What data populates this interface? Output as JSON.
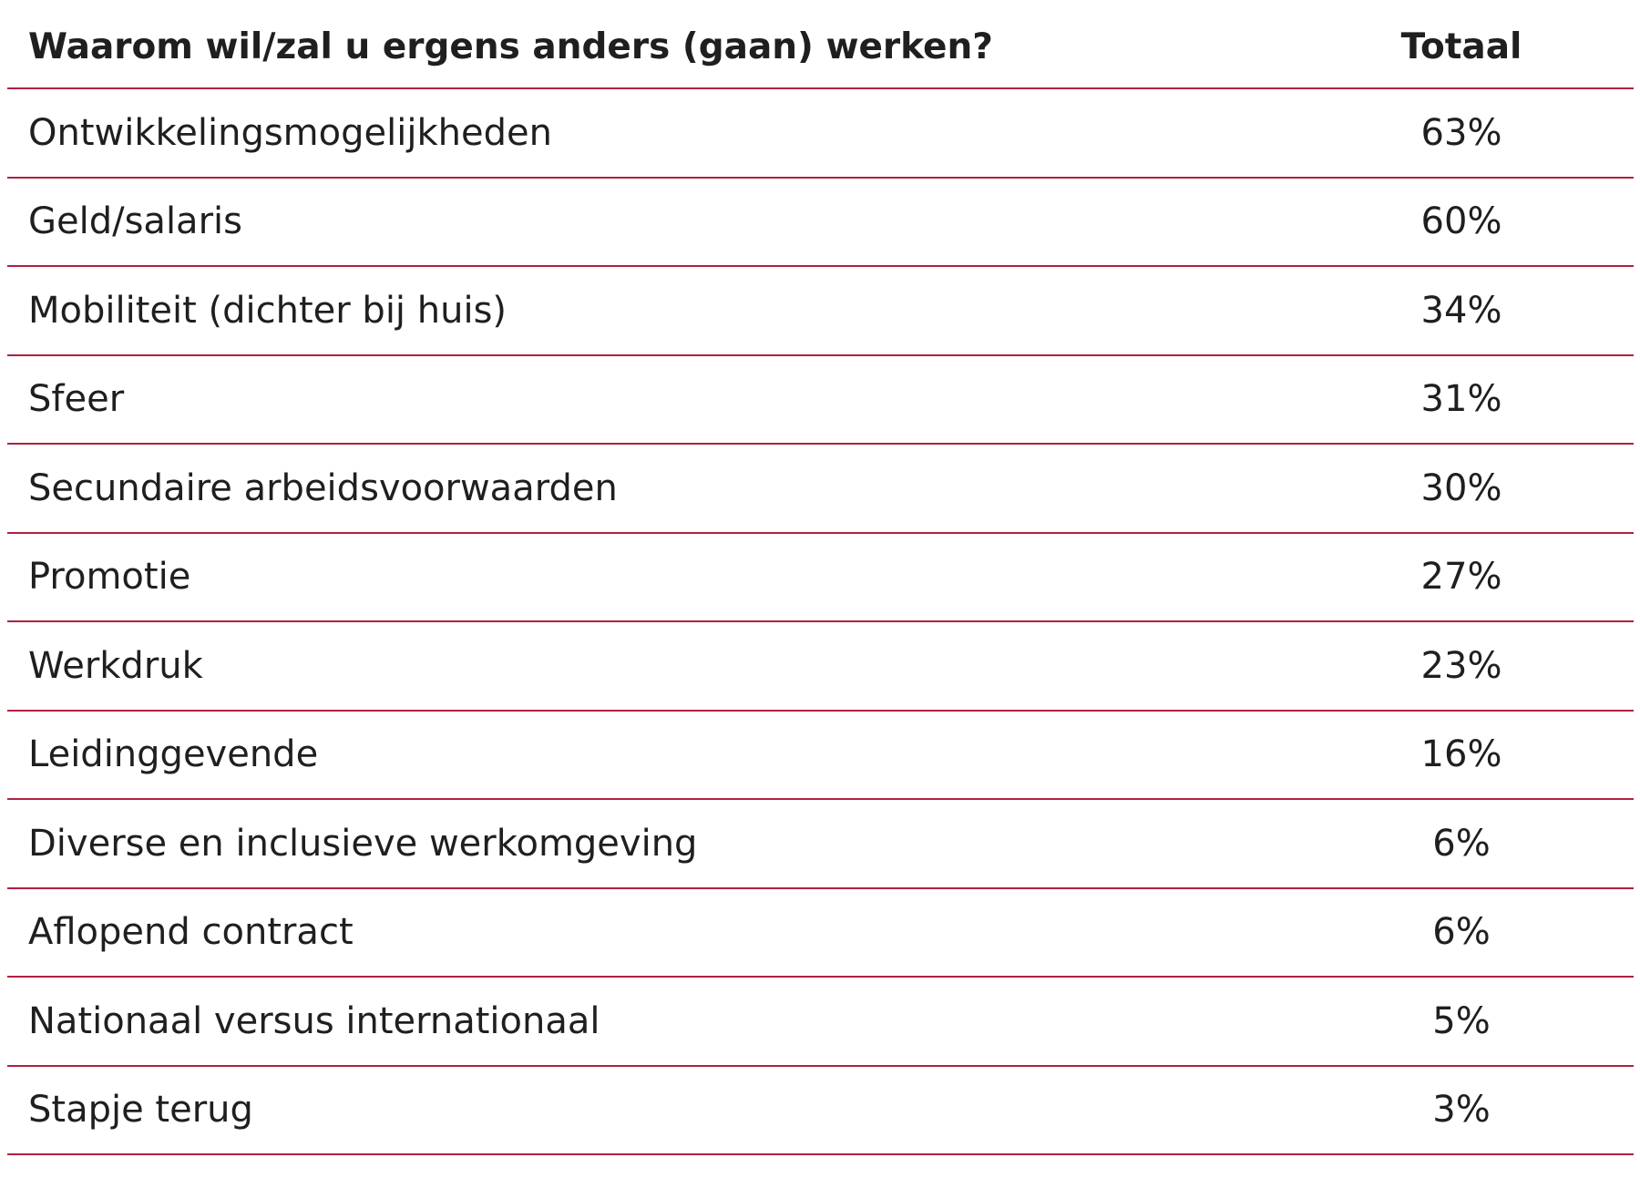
{
  "chart_data": {
    "type": "table",
    "columns": [
      "Waarom wil/zal u ergens anders (gaan) werken?",
      "Totaal"
    ],
    "rows": [
      {
        "label": "Ontwikkelingsmogelijkheden",
        "value": "63%"
      },
      {
        "label": "Geld/salaris",
        "value": "60%"
      },
      {
        "label": "Mobiliteit (dichter bij huis)",
        "value": "34%"
      },
      {
        "label": "Sfeer",
        "value": "31%"
      },
      {
        "label": "Secundaire arbeidsvoorwaarden",
        "value": "30%"
      },
      {
        "label": "Promotie",
        "value": "27%"
      },
      {
        "label": "Werkdruk",
        "value": "23%"
      },
      {
        "label": "Leidinggevende",
        "value": "16%"
      },
      {
        "label": "Diverse en inclusieve werkomgeving",
        "value": "6%"
      },
      {
        "label": "Aflopend contract",
        "value": "6%"
      },
      {
        "label": "Nationaal versus internationaal",
        "value": "5%"
      },
      {
        "label": "Stapje terug",
        "value": "3%"
      }
    ],
    "line_color": "#b0213f",
    "text_color": "#1f1f1f"
  }
}
